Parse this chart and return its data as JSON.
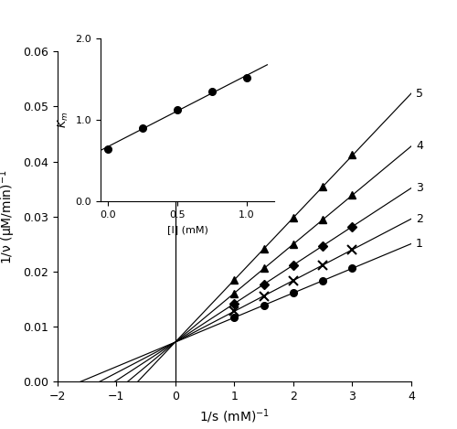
{
  "title": "",
  "xlabel": "1/s (mM)$^{-1}$",
  "ylabel": "1/ν (μM/min)$^{-1}$",
  "xlim": [
    -2.0,
    4.0
  ],
  "ylim": [
    0.0,
    0.06
  ],
  "xticks": [
    -2.0,
    -1.0,
    0.0,
    1.0,
    2.0,
    3.0,
    4.0
  ],
  "yticks": [
    0.0,
    0.01,
    0.02,
    0.03,
    0.04,
    0.05,
    0.06
  ],
  "figsize": [
    5.0,
    4.69
  ],
  "dpi": 100,
  "common_yintercept": 0.0072,
  "curves": [
    {
      "label": "1",
      "slope": 0.00447,
      "x_data": [
        1.0,
        1.5,
        2.0,
        2.5,
        3.0
      ],
      "y_data": [
        0.0117,
        0.0139,
        0.0162,
        0.0184,
        0.0207
      ],
      "marker": "o"
    },
    {
      "label": "2",
      "slope": 0.0056,
      "x_data": [
        1.0,
        1.5,
        2.0,
        2.5,
        3.0
      ],
      "y_data": [
        0.0128,
        0.0156,
        0.0184,
        0.0212,
        0.024
      ],
      "marker": "x"
    },
    {
      "label": "3",
      "slope": 0.007,
      "x_data": [
        1.0,
        1.5,
        2.0,
        2.5,
        3.0
      ],
      "y_data": [
        0.0142,
        0.0177,
        0.0212,
        0.0247,
        0.0282
      ],
      "marker": "D"
    },
    {
      "label": "4",
      "slope": 0.0089,
      "x_data": [
        1.0,
        1.5,
        2.0,
        2.5,
        3.0
      ],
      "y_data": [
        0.0161,
        0.0206,
        0.025,
        0.0295,
        0.034
      ],
      "marker": "^"
    },
    {
      "label": "5",
      "slope": 0.0113,
      "x_data": [
        1.0,
        1.5,
        2.0,
        2.5,
        3.0
      ],
      "y_data": [
        0.0185,
        0.0242,
        0.0298,
        0.0355,
        0.0412
      ],
      "marker": "^"
    }
  ],
  "inset": {
    "x_data": [
      0.0,
      0.25,
      0.5,
      0.75,
      1.0
    ],
    "y_data": [
      0.65,
      0.9,
      1.13,
      1.35,
      1.52
    ],
    "xlabel": "[I] (mM)",
    "ylabel": "$K_m$",
    "xlim": [
      -0.05,
      1.2
    ],
    "ylim": [
      0.0,
      2.0
    ],
    "xticks": [
      0.0,
      0.5,
      1.0
    ],
    "yticks": [
      0.0,
      1.0,
      2.0
    ]
  }
}
